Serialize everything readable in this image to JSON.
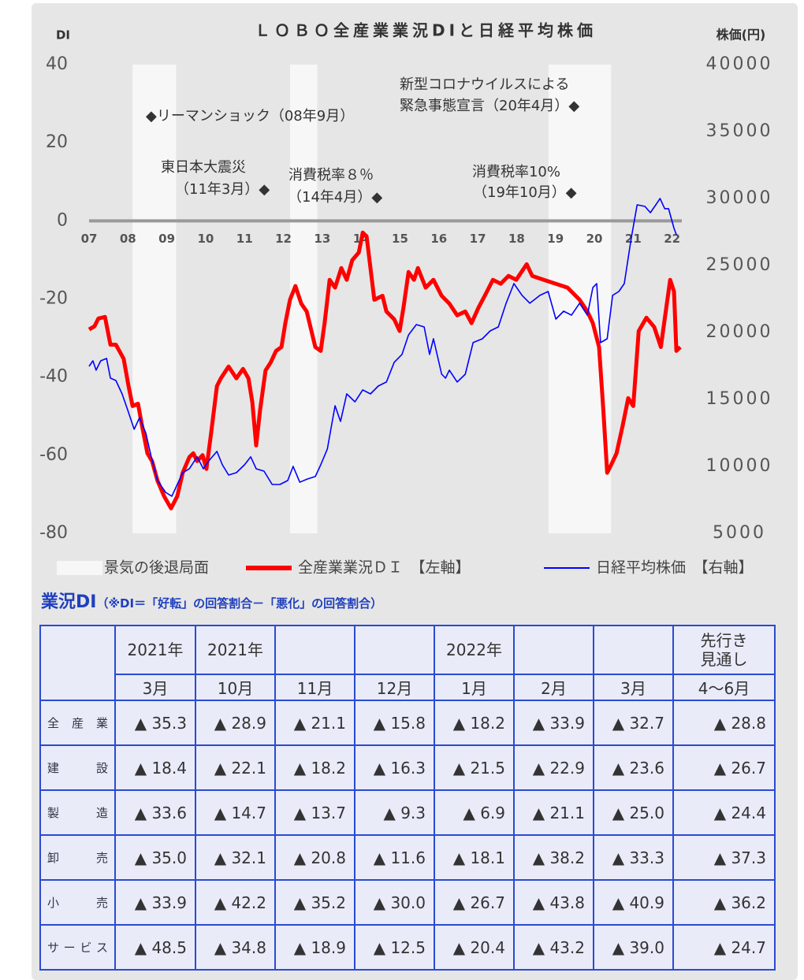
{
  "chart_data": {
    "type": "line",
    "title": "ＬＯＢＯ全産業業況DIと日経平均株価",
    "ylabel": "DI",
    "y2label": "株価(円)",
    "xlim": [
      2007,
      2022.25
    ],
    "xticks": [
      {
        "value": 2007,
        "label": "07"
      },
      {
        "value": 2008,
        "label": "08"
      },
      {
        "value": 2009,
        "label": "09"
      },
      {
        "value": 2010,
        "label": "10"
      },
      {
        "value": 2011,
        "label": "11"
      },
      {
        "value": 2012,
        "label": "12"
      },
      {
        "value": 2013,
        "label": "13"
      },
      {
        "value": 2014,
        "label": "14"
      },
      {
        "value": 2015,
        "label": "15"
      },
      {
        "value": 2016,
        "label": "16"
      },
      {
        "value": 2017,
        "label": "17"
      },
      {
        "value": 2018,
        "label": "18"
      },
      {
        "value": 2019,
        "label": "19"
      },
      {
        "value": 2020,
        "label": "20"
      },
      {
        "value": 2021,
        "label": "21"
      },
      {
        "value": 2022,
        "label": "22"
      }
    ],
    "ylim": [
      -80,
      40
    ],
    "yticks": [
      -80,
      -60,
      -40,
      -20,
      0,
      20,
      40
    ],
    "y2lim": [
      5000,
      40000
    ],
    "y2ticks": [
      5000,
      10000,
      15000,
      20000,
      25000,
      30000,
      35000,
      40000
    ],
    "recession": {
      "name": "景気の後退局面",
      "color": "#f7f7f7",
      "ranges": [
        [
          2008.12,
          2009.24
        ],
        [
          2012.17,
          2012.87
        ],
        [
          2018.82,
          2020.43
        ]
      ]
    },
    "series": [
      {
        "name": "全産業業況ＤＩ　【左軸】",
        "color": "#ff0000",
        "axis": "y",
        "x": [
          2007.0,
          2007.14,
          2007.24,
          2007.41,
          2007.55,
          2007.69,
          2007.89,
          2008.01,
          2008.12,
          2008.26,
          2008.36,
          2008.5,
          2008.62,
          2008.76,
          2008.93,
          2009.11,
          2009.27,
          2009.41,
          2009.58,
          2009.68,
          2009.78,
          2009.92,
          2010.02,
          2010.14,
          2010.29,
          2010.39,
          2010.59,
          2010.79,
          2010.96,
          2011.1,
          2011.2,
          2011.3,
          2011.4,
          2011.54,
          2011.67,
          2011.81,
          2011.95,
          2012.05,
          2012.17,
          2012.31,
          2012.46,
          2012.6,
          2012.72,
          2012.82,
          2012.96,
          2013.06,
          2013.19,
          2013.33,
          2013.49,
          2013.63,
          2013.77,
          2013.94,
          2014.04,
          2014.14,
          2014.24,
          2014.34,
          2014.55,
          2014.65,
          2014.85,
          2014.99,
          2015.09,
          2015.22,
          2015.36,
          2015.46,
          2015.66,
          2015.86,
          2016.07,
          2016.27,
          2016.47,
          2016.68,
          2016.84,
          2017.02,
          2017.18,
          2017.39,
          2017.59,
          2017.79,
          2017.99,
          2018.26,
          2018.4,
          2018.7,
          2019.01,
          2019.31,
          2019.62,
          2019.82,
          2019.96,
          2020.12,
          2020.23,
          2020.33,
          2020.43,
          2020.57,
          2020.73,
          2020.87,
          2021.0,
          2021.14,
          2021.34,
          2021.54,
          2021.71,
          2021.85,
          2021.95,
          2022.05,
          2022.11,
          2022.21
        ],
        "values": [
          -27.8,
          -27,
          -25,
          -24.6,
          -31.7,
          -31.7,
          -35.3,
          -42,
          -47.4,
          -46.8,
          -52.4,
          -59.5,
          -61.5,
          -66.5,
          -70.5,
          -73.6,
          -70.5,
          -64.5,
          -60.5,
          -59.5,
          -61.5,
          -60,
          -63.5,
          -54.4,
          -42.3,
          -40.3,
          -37.3,
          -40.3,
          -37.9,
          -40.3,
          -46.4,
          -57.5,
          -48.4,
          -38.3,
          -36.3,
          -33.3,
          -32.3,
          -26.2,
          -20.2,
          -16.7,
          -21.2,
          -23.2,
          -28.2,
          -32.3,
          -33.3,
          -26.2,
          -15.1,
          -17.1,
          -12.1,
          -15.1,
          -10.1,
          -8.1,
          -3,
          -4,
          -12.1,
          -20.2,
          -19.2,
          -23.2,
          -25.2,
          -28.2,
          -22.2,
          -13.1,
          -15.1,
          -12.1,
          -17.1,
          -15.1,
          -19.2,
          -21.2,
          -24.2,
          -23.2,
          -26.2,
          -22.2,
          -19.2,
          -15.1,
          -16.1,
          -14.1,
          -15.1,
          -11.1,
          -14.1,
          -15.1,
          -16.1,
          -17.1,
          -20.2,
          -23.2,
          -26.2,
          -32.3,
          -48.4,
          -64.5,
          -62.5,
          -59.5,
          -52.4,
          -45.4,
          -47.4,
          -28.2,
          -24.8,
          -27.2,
          -32.3,
          -22.2,
          -15.1,
          -18.1,
          -33.3,
          -32.3
        ]
      },
      {
        "name": "日経平均株価　【右軸】",
        "color": "#0000ff",
        "axis": "y2",
        "x": [
          2007.0,
          2007.1,
          2007.18,
          2007.3,
          2007.45,
          2007.55,
          2007.69,
          2007.85,
          2007.99,
          2008.16,
          2008.3,
          2008.46,
          2008.6,
          2008.76,
          2008.97,
          2009.13,
          2009.27,
          2009.41,
          2009.58,
          2009.78,
          2009.94,
          2010.08,
          2010.29,
          2010.43,
          2010.59,
          2010.79,
          2011.0,
          2011.16,
          2011.3,
          2011.5,
          2011.71,
          2011.91,
          2012.11,
          2012.25,
          2012.42,
          2012.62,
          2012.82,
          2012.96,
          2013.13,
          2013.33,
          2013.47,
          2013.63,
          2013.84,
          2014.04,
          2014.24,
          2014.44,
          2014.65,
          2014.85,
          2015.05,
          2015.22,
          2015.42,
          2015.62,
          2015.76,
          2015.86,
          2016.07,
          2016.17,
          2016.27,
          2016.47,
          2016.68,
          2016.88,
          2017.12,
          2017.32,
          2017.53,
          2017.73,
          2017.93,
          2018.14,
          2018.34,
          2018.6,
          2018.81,
          2019.01,
          2019.21,
          2019.41,
          2019.62,
          2019.82,
          2019.96,
          2020.06,
          2020.16,
          2020.33,
          2020.47,
          2020.63,
          2020.77,
          2020.94,
          2021.1,
          2021.3,
          2021.44,
          2021.58,
          2021.69,
          2021.81,
          2021.91,
          2022.05,
          2022.11
        ],
        "values": [
          17470,
          17880,
          17180,
          17880,
          18060,
          16590,
          16410,
          15410,
          14240,
          12770,
          13650,
          12480,
          10710,
          8940,
          8060,
          7770,
          8650,
          9530,
          9820,
          10710,
          9820,
          10410,
          11120,
          10120,
          9350,
          9530,
          10120,
          10710,
          9820,
          9650,
          8650,
          8650,
          8940,
          10000,
          8820,
          9060,
          9240,
          10120,
          11300,
          14530,
          13350,
          15410,
          14820,
          15710,
          15410,
          16000,
          16300,
          17770,
          18360,
          19820,
          20590,
          20410,
          18360,
          19530,
          16880,
          16590,
          17180,
          16300,
          16880,
          19240,
          19530,
          20120,
          20410,
          22180,
          23650,
          22770,
          22180,
          22770,
          23060,
          21000,
          21590,
          21290,
          22180,
          21290,
          23350,
          23650,
          19240,
          19530,
          22770,
          23060,
          23650,
          26880,
          29530,
          29410,
          28940,
          29530,
          30000,
          29240,
          29240,
          27770,
          27300
        ]
      }
    ],
    "annotations": [
      {
        "lines": [
          "◆リーマンショック（08年9月）"
        ]
      },
      {
        "lines": [
          "東日本大震災",
          "（11年3月）◆"
        ]
      },
      {
        "lines": [
          "消費税率８％",
          "（14年4月）◆"
        ]
      },
      {
        "lines": [
          "新型コロナウイルスによる",
          "緊急事態宣言（20年4月）◆"
        ]
      },
      {
        "lines": [
          "消費税率10%",
          "（19年10月）◆"
        ]
      }
    ]
  },
  "table": {
    "title": "業況DI",
    "note": "（※DI＝「好転」の回答割合－「悪化」の回答割合）",
    "header_top": [
      "2021年",
      "2021年",
      null,
      null,
      "2022年",
      null,
      null,
      "先行き\n見通し"
    ],
    "header_bottom": [
      "3月",
      "10月",
      "11月",
      "12月",
      "1月",
      "2月",
      "3月",
      "4〜6月"
    ],
    "rows": [
      {
        "label": "全産業",
        "values": [
          "▲ 35.3",
          "▲ 28.9",
          "▲ 21.1",
          "▲ 15.8",
          "▲ 18.2",
          "▲ 33.9",
          "▲ 32.7",
          "▲ 28.8"
        ]
      },
      {
        "label": "建設",
        "values": [
          "▲ 18.4",
          "▲ 22.1",
          "▲ 18.2",
          "▲ 16.3",
          "▲ 21.5",
          "▲ 22.9",
          "▲ 23.6",
          "▲ 26.7"
        ]
      },
      {
        "label": "製造",
        "values": [
          "▲ 33.6",
          "▲ 14.7",
          "▲ 13.7",
          "▲ 9.3",
          "▲ 6.9",
          "▲ 21.1",
          "▲ 25.0",
          "▲ 24.4"
        ]
      },
      {
        "label": "卸売",
        "values": [
          "▲ 35.0",
          "▲ 32.1",
          "▲ 20.8",
          "▲ 11.6",
          "▲ 18.1",
          "▲ 38.2",
          "▲ 33.3",
          "▲ 37.3"
        ]
      },
      {
        "label": "小売",
        "values": [
          "▲ 33.9",
          "▲ 42.2",
          "▲ 35.2",
          "▲ 30.0",
          "▲ 26.7",
          "▲ 43.8",
          "▲ 40.9",
          "▲ 36.2"
        ]
      },
      {
        "label": "サービス",
        "values": [
          "▲ 48.5",
          "▲ 34.8",
          "▲ 18.9",
          "▲ 12.5",
          "▲ 20.4",
          "▲ 43.2",
          "▲ 39.0",
          "▲ 24.7"
        ]
      }
    ]
  }
}
